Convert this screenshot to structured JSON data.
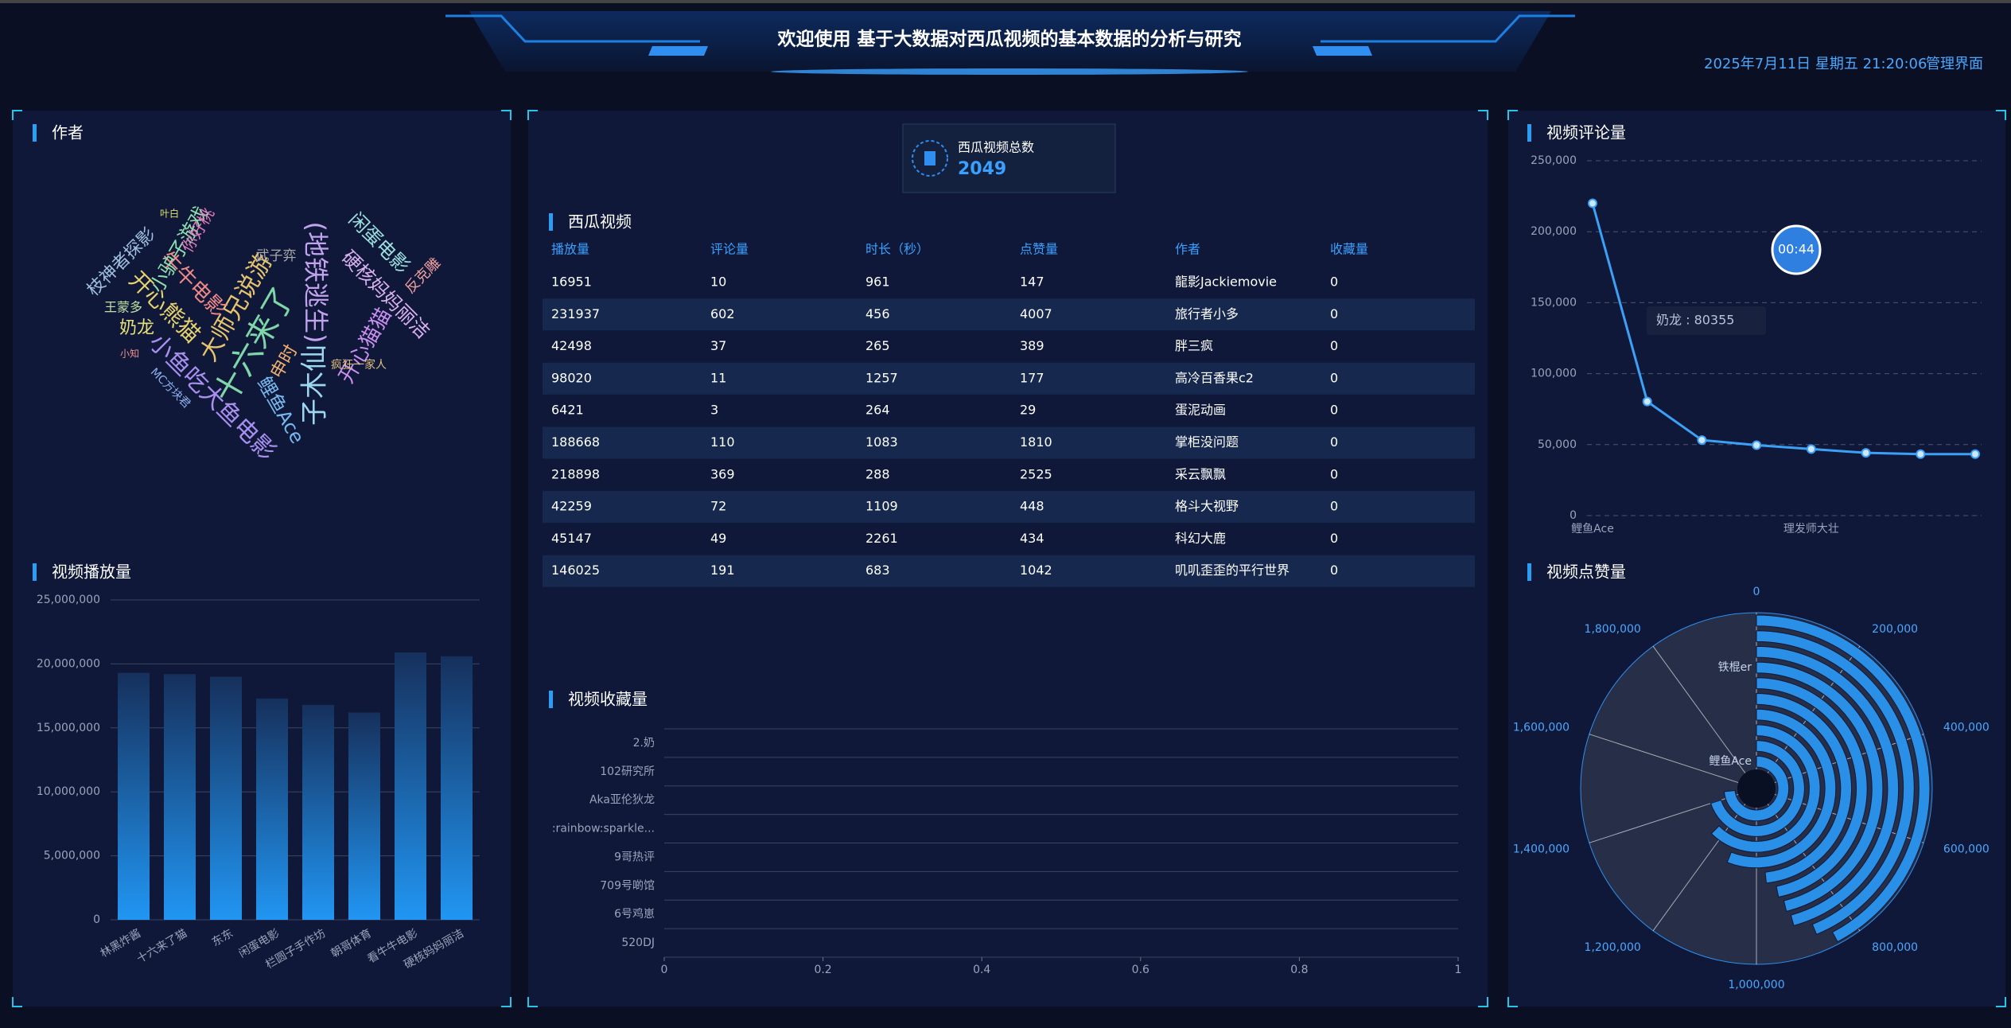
{
  "header": {
    "title": "欢迎使用 基于大数据对西瓜视频的基本数据的分析与研究",
    "datetime": "2025年7月11日 星期五 21:20:06",
    "admin_link": "管理界面"
  },
  "total_card": {
    "label": "西瓜视频总数",
    "value": 2049
  },
  "word_cloud": {
    "title": "作者",
    "words": [
      "十六来了",
      "大师兄说游",
      "子木仙",
      "(地铁逃生)",
      "小鱼吃大鱼电影",
      "开心熊猫",
      "牛牛电影",
      "小驴子游戏",
      "闲蛋电影",
      "硬核妈妈丽洁",
      "开心猫猫",
      "鲤鱼Ace",
      "奶龙",
      "王蒙多",
      "武子弈",
      "你好桃",
      "申时",
      "枝神者探影",
      "反克雕",
      "疯狂一家人",
      "MC方块君",
      "叶白",
      "小知"
    ]
  },
  "table": {
    "title": "西瓜视频",
    "columns": [
      "播放量",
      "评论量",
      "时长（秒）",
      "点赞量",
      "作者",
      "收藏量"
    ],
    "rows": [
      [
        16951,
        10,
        961,
        147,
        "龍影Jackiemovie",
        0
      ],
      [
        231937,
        602,
        456,
        4007,
        "旅行者小多",
        0
      ],
      [
        42498,
        37,
        265,
        389,
        "胖三疯",
        0
      ],
      [
        98020,
        11,
        1257,
        177,
        "高冷百香果c2",
        0
      ],
      [
        6421,
        3,
        264,
        29,
        "蛋泥动画",
        0
      ],
      [
        188668,
        110,
        1083,
        1810,
        "掌柜没问题",
        0
      ],
      [
        218898,
        369,
        288,
        2525,
        "采云飘飘",
        0
      ],
      [
        42259,
        72,
        1109,
        448,
        "格斗大视野",
        0
      ],
      [
        45147,
        49,
        2261,
        434,
        "科幻大鹿",
        0
      ],
      [
        146025,
        191,
        683,
        1042,
        "叽叽歪歪的平行世界",
        0
      ]
    ]
  },
  "chart_data": [
    {
      "type": "bar",
      "title": "视频播放量",
      "color": "#2196f3",
      "grid": true,
      "categories": [
        "林黑炸酱",
        "十六来了猫",
        "东东",
        "闲蛋电影",
        "栏圆子手作坊",
        "朝哥体育",
        "看牛牛电影",
        "硬核妈妈丽洁"
      ],
      "values": [
        19300000,
        19200000,
        19000000,
        17300000,
        16800000,
        16200000,
        20900000,
        20600000
      ],
      "ylim": [
        0,
        25000000
      ],
      "yticks": [
        0,
        {
          "value": 5000000,
          "label": "5,000,000"
        },
        {
          "value": 10000000,
          "label": "10,000,000"
        },
        {
          "value": 15000000,
          "label": "15,000,000"
        },
        {
          "value": 20000000,
          "label": "20,000,000"
        },
        {
          "value": 25000000,
          "label": "25,000,000"
        }
      ]
    },
    {
      "type": "bar",
      "horizontal": true,
      "title": "视频收藏量",
      "color": "#2196f3",
      "grid": true,
      "categories": [
        "2.奶",
        "102研究所",
        "Aka亚伦狄龙",
        ":rainbow:sparkle...",
        "9哥热评",
        "709号啲馆",
        "6号鸡崽",
        "520DJ"
      ],
      "values": [
        0,
        0,
        0,
        0,
        0,
        0,
        0,
        0
      ],
      "xlim": [
        0,
        1
      ],
      "xticks": [
        0,
        0.2,
        0.4,
        0.6,
        0.8,
        1
      ]
    },
    {
      "type": "line",
      "title": "视频评论量",
      "color": "#3ba1f7",
      "grid": true,
      "categories": [
        "鲤鱼Ace",
        null,
        null,
        null,
        "理发师大壮",
        null,
        null,
        null
      ],
      "values": [
        220000,
        80355,
        53200,
        49600,
        46900,
        44200,
        43300,
        43300
      ],
      "ylim": [
        0,
        250000
      ],
      "yticks": [
        0,
        {
          "value": 50000,
          "label": "50,000"
        },
        {
          "value": 100000,
          "label": "100,000"
        },
        {
          "value": 150000,
          "label": "150,000"
        },
        {
          "value": 200000,
          "label": "200,000"
        },
        {
          "value": 250000,
          "label": "250,000"
        }
      ],
      "tooltip": "奶龙 : 80355",
      "timer": "00:44"
    },
    {
      "type": "polar_bar",
      "title": "视频点赞量",
      "color": "#2a8fe6",
      "categories": [
        "鲤鱼Ace",
        null,
        null,
        null,
        null,
        null,
        "铁棍er",
        null,
        null,
        null
      ],
      "values": [
        1470000,
        1400000,
        1250000,
        1120000,
        966854,
        936100,
        923683,
        915305,
        875582,
        845000
      ],
      "alim": [
        0,
        2000000
      ],
      "aticks": [
        0,
        {
          "value": 200000,
          "label": "200,000"
        },
        {
          "value": 400000,
          "label": "400,000"
        },
        {
          "value": 600000,
          "label": "600,000"
        },
        {
          "value": 800000,
          "label": "800,000"
        },
        {
          "value": 1000000,
          "label": "1,000,000"
        },
        {
          "value": 1200000,
          "label": "1,200,000"
        },
        {
          "value": 1400000,
          "label": "1,400,000"
        },
        {
          "value": 1600000,
          "label": "1,600,000"
        },
        {
          "value": 1800000,
          "label": "1,800,000"
        }
      ]
    }
  ]
}
